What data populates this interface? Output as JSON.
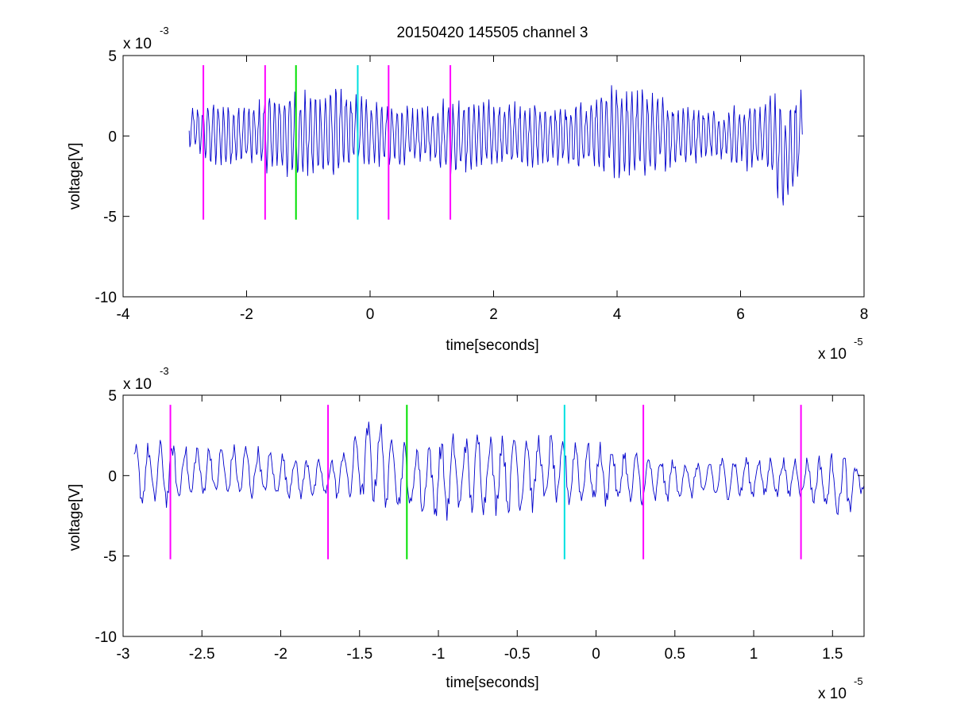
{
  "figure": {
    "title": "20150420 145505 channel 3",
    "background": "#ffffff",
    "axis_color": "#000000"
  },
  "chart_data": [
    {
      "type": "line",
      "panel": "top",
      "xlabel": "time[seconds]",
      "ylabel": "voltage[V]",
      "xlim": [
        -4e-05,
        8e-05
      ],
      "ylim": [
        -0.01,
        0.005
      ],
      "x_ticks": [
        -4e-05,
        -2e-05,
        0,
        2e-05,
        4e-05,
        6e-05,
        8e-05
      ],
      "x_tick_labels": [
        "-4",
        "-2",
        "0",
        "2",
        "4",
        "6",
        "8"
      ],
      "y_ticks": [
        -0.01,
        -0.005,
        0,
        0.005
      ],
      "y_tick_labels": [
        "-10",
        "-5",
        "0",
        "5"
      ],
      "x_multiplier": {
        "base": "x 10",
        "exponent": "-5"
      },
      "y_multiplier": {
        "base": "x 10",
        "exponent": "-3"
      },
      "grid": false,
      "series": [
        {
          "color": "#0000cc",
          "x_start": -2.93e-05,
          "x_end": 7e-05,
          "envelope": [
            [
              -2.93e-05,
              -0.001,
              0.002
            ],
            [
              -2.5e-05,
              -0.002,
              0.0022
            ],
            [
              -2e-05,
              -0.002,
              0.002
            ],
            [
              -1.5e-05,
              -0.0025,
              0.0028
            ],
            [
              -1e-05,
              -0.003,
              0.003
            ],
            [
              -5e-06,
              -0.0025,
              0.003
            ],
            [
              0.0,
              -0.002,
              0.0025
            ],
            [
              5e-06,
              -0.002,
              0.0018
            ],
            [
              1e-05,
              -0.002,
              0.0022
            ],
            [
              1.5e-05,
              -0.003,
              0.0028
            ],
            [
              2e-05,
              -0.002,
              0.0022
            ],
            [
              2.5e-05,
              -0.002,
              0.0022
            ],
            [
              3e-05,
              -0.002,
              0.002
            ],
            [
              3.5e-05,
              -0.0025,
              0.0025
            ],
            [
              4e-05,
              -0.0028,
              0.0033
            ],
            [
              4.5e-05,
              -0.0025,
              0.0028
            ],
            [
              5e-05,
              -0.002,
              0.0022
            ],
            [
              5.5e-05,
              -0.0015,
              0.0018
            ],
            [
              6e-05,
              -0.002,
              0.002
            ],
            [
              6.5e-05,
              -0.003,
              0.003
            ],
            [
              6.7e-05,
              -0.0047,
              0.002
            ],
            [
              7e-05,
              -0.0025,
              0.003
            ]
          ]
        }
      ],
      "markers": [
        {
          "x": -2.7e-05,
          "color": "#ff00ff",
          "y_range": [
            -0.0052,
            0.0044
          ]
        },
        {
          "x": -1.7e-05,
          "color": "#ff00ff",
          "y_range": [
            -0.0052,
            0.0044
          ]
        },
        {
          "x": -1.2e-05,
          "color": "#00e000",
          "y_range": [
            -0.0052,
            0.0044
          ]
        },
        {
          "x": -2e-06,
          "color": "#00e0e0",
          "y_range": [
            -0.0052,
            0.0044
          ]
        },
        {
          "x": 3e-06,
          "color": "#ff00ff",
          "y_range": [
            -0.0052,
            0.0044
          ]
        },
        {
          "x": 1.3e-05,
          "color": "#ff00ff",
          "y_range": [
            -0.0052,
            0.0044
          ]
        }
      ]
    },
    {
      "type": "line",
      "panel": "bottom",
      "xlabel": "time[seconds]",
      "ylabel": "voltage[V]",
      "xlim": [
        -3e-05,
        1.7e-05
      ],
      "ylim": [
        -0.01,
        0.005
      ],
      "x_ticks": [
        -3e-05,
        -2.5e-05,
        -2e-05,
        -1.5e-05,
        -1e-05,
        -5e-06,
        0,
        5e-06,
        1e-05,
        1.5e-05
      ],
      "x_tick_labels": [
        "-3",
        "-2.5",
        "-2",
        "-1.5",
        "-1",
        "-0.5",
        "0",
        "0.5",
        "1",
        "1.5"
      ],
      "y_ticks": [
        -0.01,
        -0.005,
        0,
        0.005
      ],
      "y_tick_labels": [
        "-10",
        "-5",
        "0",
        "5"
      ],
      "x_multiplier": {
        "base": "x 10",
        "exponent": "-5"
      },
      "y_multiplier": {
        "base": "x 10",
        "exponent": "-3"
      },
      "grid": false,
      "series": [
        {
          "color": "#0000cc",
          "x_start": -2.93e-05,
          "x_end": 1.7e-05,
          "envelope": [
            [
              -2.93e-05,
              -0.002,
              0.002
            ],
            [
              -2.7e-05,
              -0.002,
              0.0023
            ],
            [
              -2.5e-05,
              -0.0015,
              0.002
            ],
            [
              -2.2e-05,
              -0.0015,
              0.002
            ],
            [
              -2e-05,
              -0.0015,
              0.0015
            ],
            [
              -1.7e-05,
              -0.0015,
              0.001
            ],
            [
              -1.4e-05,
              -0.002,
              0.004
            ],
            [
              -1.2e-05,
              -0.0025,
              0.002
            ],
            [
              -1e-05,
              -0.003,
              0.0025
            ],
            [
              -8e-06,
              -0.0025,
              0.0028
            ],
            [
              -5e-06,
              -0.0025,
              0.003
            ],
            [
              -2e-06,
              -0.002,
              0.0025
            ],
            [
              0.0,
              -0.002,
              0.0022
            ],
            [
              3e-06,
              -0.002,
              0.0015
            ],
            [
              6e-06,
              -0.0015,
              0.001
            ],
            [
              1e-05,
              -0.0015,
              0.0013
            ],
            [
              1.3e-05,
              -0.0015,
              0.0012
            ],
            [
              1.6e-05,
              -0.003,
              0.0015
            ],
            [
              1.7e-05,
              -0.001,
              0.0005
            ]
          ]
        }
      ],
      "markers": [
        {
          "x": -2.7e-05,
          "color": "#ff00ff",
          "y_range": [
            -0.0052,
            0.0044
          ]
        },
        {
          "x": -1.7e-05,
          "color": "#ff00ff",
          "y_range": [
            -0.0052,
            0.0044
          ]
        },
        {
          "x": -1.2e-05,
          "color": "#00e000",
          "y_range": [
            -0.0052,
            0.0044
          ]
        },
        {
          "x": -2e-06,
          "color": "#00e0e0",
          "y_range": [
            -0.0052,
            0.0044
          ]
        },
        {
          "x": 3e-06,
          "color": "#ff00ff",
          "y_range": [
            -0.0052,
            0.0044
          ]
        },
        {
          "x": 1.3e-05,
          "color": "#ff00ff",
          "y_range": [
            -0.0052,
            0.0044
          ]
        }
      ]
    }
  ]
}
